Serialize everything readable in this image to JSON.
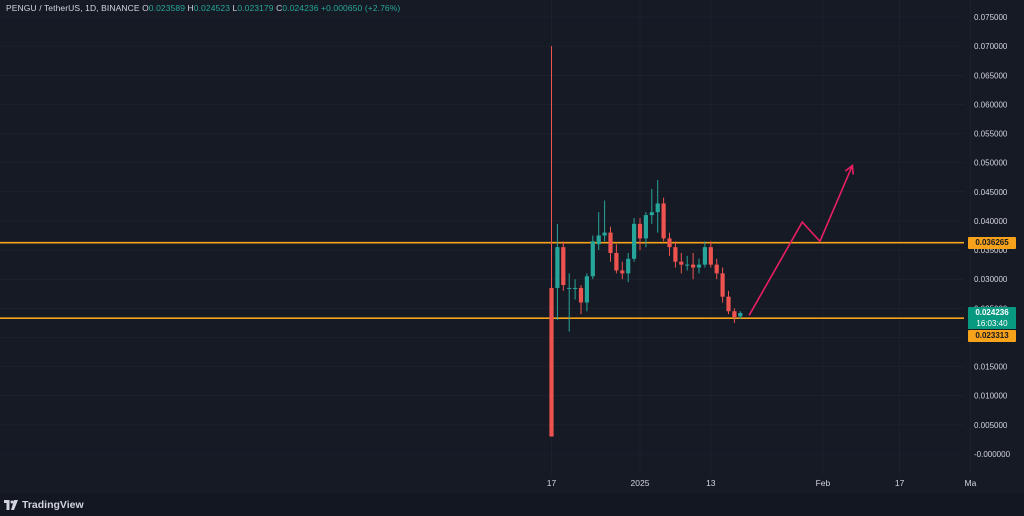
{
  "header": {
    "symbol": "PENGU / TetherUS, 1D, BINANCE",
    "o_label": "O",
    "o_value": "0.023589",
    "h_label": "H",
    "h_value": "0.024523",
    "l_label": "L",
    "l_value": "0.023179",
    "c_label": "C",
    "c_value": "0.024236",
    "change": "+0.000650 (+2.76%)"
  },
  "branding": {
    "name": "TradingView"
  },
  "price_tags": {
    "resistance": "0.036265",
    "last_price": "0.024236",
    "countdown": "16:03:40",
    "support": "0.023313"
  },
  "colors": {
    "background": "#161a25",
    "up": "#26a69a",
    "down": "#ef5350",
    "level_line": "#f7a21b",
    "projection": "#e91e63",
    "grid": "#2a2e39",
    "axis_text": "#d1d4dc"
  },
  "chart_data": {
    "type": "candlestick",
    "y_scale": {
      "min": -0.001,
      "max": 0.077
    },
    "y_ticks": [
      0.075,
      0.07,
      0.065,
      0.06,
      0.055,
      0.05,
      0.045,
      0.04,
      0.035,
      0.03,
      0.025,
      0.02,
      0.015,
      0.01,
      0.005,
      0.0
    ],
    "y_tick_labels": [
      "0.075000",
      "0.070000",
      "0.065000",
      "0.060000",
      "0.055000",
      "0.050000",
      "0.045000",
      "0.040000",
      "0.035000",
      "0.030000",
      "0.025000",
      "0.020000",
      "0.015000",
      "0.010000",
      "0.005000",
      "-0.000000"
    ],
    "x_ticks": [
      {
        "label": "17",
        "index": 0
      },
      {
        "label": "2025",
        "index": 15
      },
      {
        "label": "13",
        "index": 27
      },
      {
        "label": "Feb",
        "index": 46
      },
      {
        "label": "17",
        "index": 59
      },
      {
        "label": "Ma",
        "index": 71
      }
    ],
    "candles": [
      {
        "o": 0.0285,
        "h": 0.07,
        "l": 0.003,
        "c": 0.003
      },
      {
        "o": 0.0285,
        "h": 0.0395,
        "l": 0.023,
        "c": 0.0355
      },
      {
        "o": 0.0355,
        "h": 0.0365,
        "l": 0.028,
        "c": 0.029
      },
      {
        "o": 0.0285,
        "h": 0.031,
        "l": 0.021,
        "c": 0.0285
      },
      {
        "o": 0.0285,
        "h": 0.03,
        "l": 0.0265,
        "c": 0.0285
      },
      {
        "o": 0.0285,
        "h": 0.029,
        "l": 0.024,
        "c": 0.026
      },
      {
        "o": 0.026,
        "h": 0.031,
        "l": 0.0245,
        "c": 0.0305
      },
      {
        "o": 0.0305,
        "h": 0.0375,
        "l": 0.03,
        "c": 0.0365
      },
      {
        "o": 0.036,
        "h": 0.0415,
        "l": 0.035,
        "c": 0.0375
      },
      {
        "o": 0.0375,
        "h": 0.0435,
        "l": 0.0365,
        "c": 0.038
      },
      {
        "o": 0.038,
        "h": 0.039,
        "l": 0.033,
        "c": 0.0345
      },
      {
        "o": 0.0345,
        "h": 0.036,
        "l": 0.031,
        "c": 0.0315
      },
      {
        "o": 0.0315,
        "h": 0.033,
        "l": 0.03,
        "c": 0.031
      },
      {
        "o": 0.031,
        "h": 0.0345,
        "l": 0.0295,
        "c": 0.0335
      },
      {
        "o": 0.0335,
        "h": 0.0405,
        "l": 0.033,
        "c": 0.0395
      },
      {
        "o": 0.0395,
        "h": 0.0405,
        "l": 0.035,
        "c": 0.037
      },
      {
        "o": 0.037,
        "h": 0.0415,
        "l": 0.0355,
        "c": 0.041
      },
      {
        "o": 0.041,
        "h": 0.0455,
        "l": 0.0395,
        "c": 0.0415
      },
      {
        "o": 0.0415,
        "h": 0.047,
        "l": 0.038,
        "c": 0.043
      },
      {
        "o": 0.043,
        "h": 0.044,
        "l": 0.0365,
        "c": 0.037
      },
      {
        "o": 0.037,
        "h": 0.038,
        "l": 0.034,
        "c": 0.0355
      },
      {
        "o": 0.0355,
        "h": 0.0365,
        "l": 0.032,
        "c": 0.033
      },
      {
        "o": 0.033,
        "h": 0.0345,
        "l": 0.031,
        "c": 0.0325
      },
      {
        "o": 0.0325,
        "h": 0.034,
        "l": 0.0315,
        "c": 0.0325
      },
      {
        "o": 0.0325,
        "h": 0.0345,
        "l": 0.03,
        "c": 0.032
      },
      {
        "o": 0.032,
        "h": 0.0335,
        "l": 0.031,
        "c": 0.0325
      },
      {
        "o": 0.0325,
        "h": 0.0365,
        "l": 0.032,
        "c": 0.0355
      },
      {
        "o": 0.0355,
        "h": 0.0365,
        "l": 0.032,
        "c": 0.0325
      },
      {
        "o": 0.0325,
        "h": 0.0335,
        "l": 0.03,
        "c": 0.031
      },
      {
        "o": 0.031,
        "h": 0.032,
        "l": 0.026,
        "c": 0.027
      },
      {
        "o": 0.027,
        "h": 0.028,
        "l": 0.024,
        "c": 0.0245
      },
      {
        "o": 0.0245,
        "h": 0.025,
        "l": 0.0225,
        "c": 0.0235
      },
      {
        "o": 0.0236,
        "h": 0.0245,
        "l": 0.0232,
        "c": 0.0242
      }
    ],
    "horizontal_levels": [
      0.036265,
      0.023313
    ],
    "projection_path": [
      {
        "index": 33.5,
        "price": 0.0238
      },
      {
        "index": 42.5,
        "price": 0.0398
      },
      {
        "index": 45.5,
        "price": 0.0365
      },
      {
        "index": 51.0,
        "price": 0.0495
      }
    ]
  }
}
